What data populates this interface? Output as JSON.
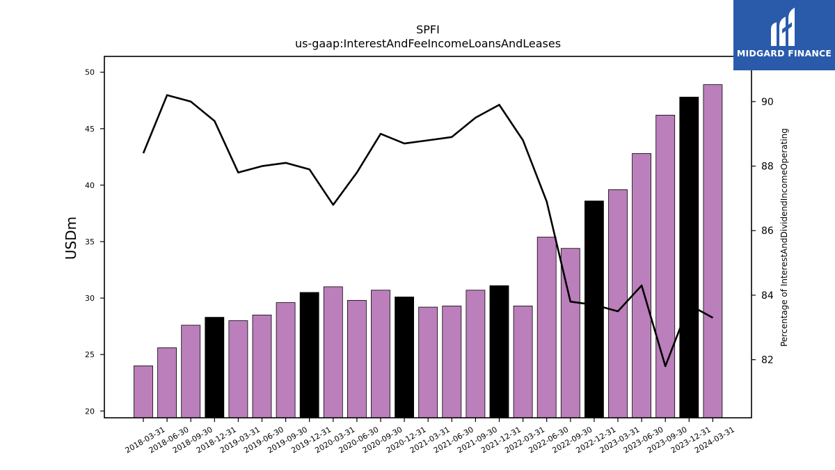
{
  "title": "SPFI",
  "subtitle": "us-gaap:InterestAndFeeIncomeLoansAndLeases",
  "logo": {
    "name": "MIDGARD FINANCE",
    "bg_color": "#2a5bab"
  },
  "colors": {
    "bar_default": "#bb7fbb",
    "bar_highlight": "#000000",
    "line": "#000000"
  },
  "chart_data": {
    "type": "bar",
    "ylabel": "USDm",
    "y2label": "Percentage of InterestAndDividendIncomeOperating",
    "ylim": [
      19.4,
      51.4
    ],
    "y2lim": [
      80.2,
      91.4
    ],
    "yticks": [
      20,
      25,
      30,
      35,
      40,
      45,
      50
    ],
    "y2ticks": [
      82,
      84,
      86,
      88,
      90
    ],
    "grid": false,
    "categories": [
      "2018-03-31",
      "2018-06-30",
      "2018-09-30",
      "2018-12-31",
      "2019-03-31",
      "2019-06-30",
      "2019-09-30",
      "2019-12-31",
      "2020-03-31",
      "2020-06-30",
      "2020-09-30",
      "2020-12-31",
      "2021-03-31",
      "2021-06-30",
      "2021-09-30",
      "2021-12-31",
      "2022-03-31",
      "2022-06-30",
      "2022-09-30",
      "2022-12-31",
      "2023-03-31",
      "2023-06-30",
      "2023-09-30",
      "2023-12-31",
      "2024-03-31"
    ],
    "series": [
      {
        "kind": "bar",
        "axis": "left",
        "values": [
          24.0,
          25.6,
          27.6,
          28.3,
          28.0,
          28.5,
          29.6,
          30.5,
          31.0,
          29.8,
          30.7,
          30.1,
          29.2,
          29.3,
          30.7,
          31.1,
          29.3,
          35.4,
          34.4,
          38.6,
          39.6,
          42.8,
          46.2,
          47.8,
          48.9
        ],
        "highlight": [
          false,
          false,
          false,
          true,
          false,
          false,
          false,
          true,
          false,
          false,
          false,
          true,
          false,
          false,
          false,
          true,
          false,
          false,
          false,
          true,
          false,
          false,
          false,
          true,
          false
        ]
      },
      {
        "kind": "line",
        "axis": "right",
        "values": [
          88.4,
          90.2,
          90.0,
          89.4,
          87.8,
          88.0,
          88.1,
          87.9,
          86.8,
          87.8,
          89.0,
          88.7,
          88.8,
          88.9,
          89.5,
          89.9,
          88.8,
          86.9,
          83.8,
          83.7,
          83.5,
          84.3,
          81.8,
          83.7,
          83.3
        ]
      }
    ]
  }
}
